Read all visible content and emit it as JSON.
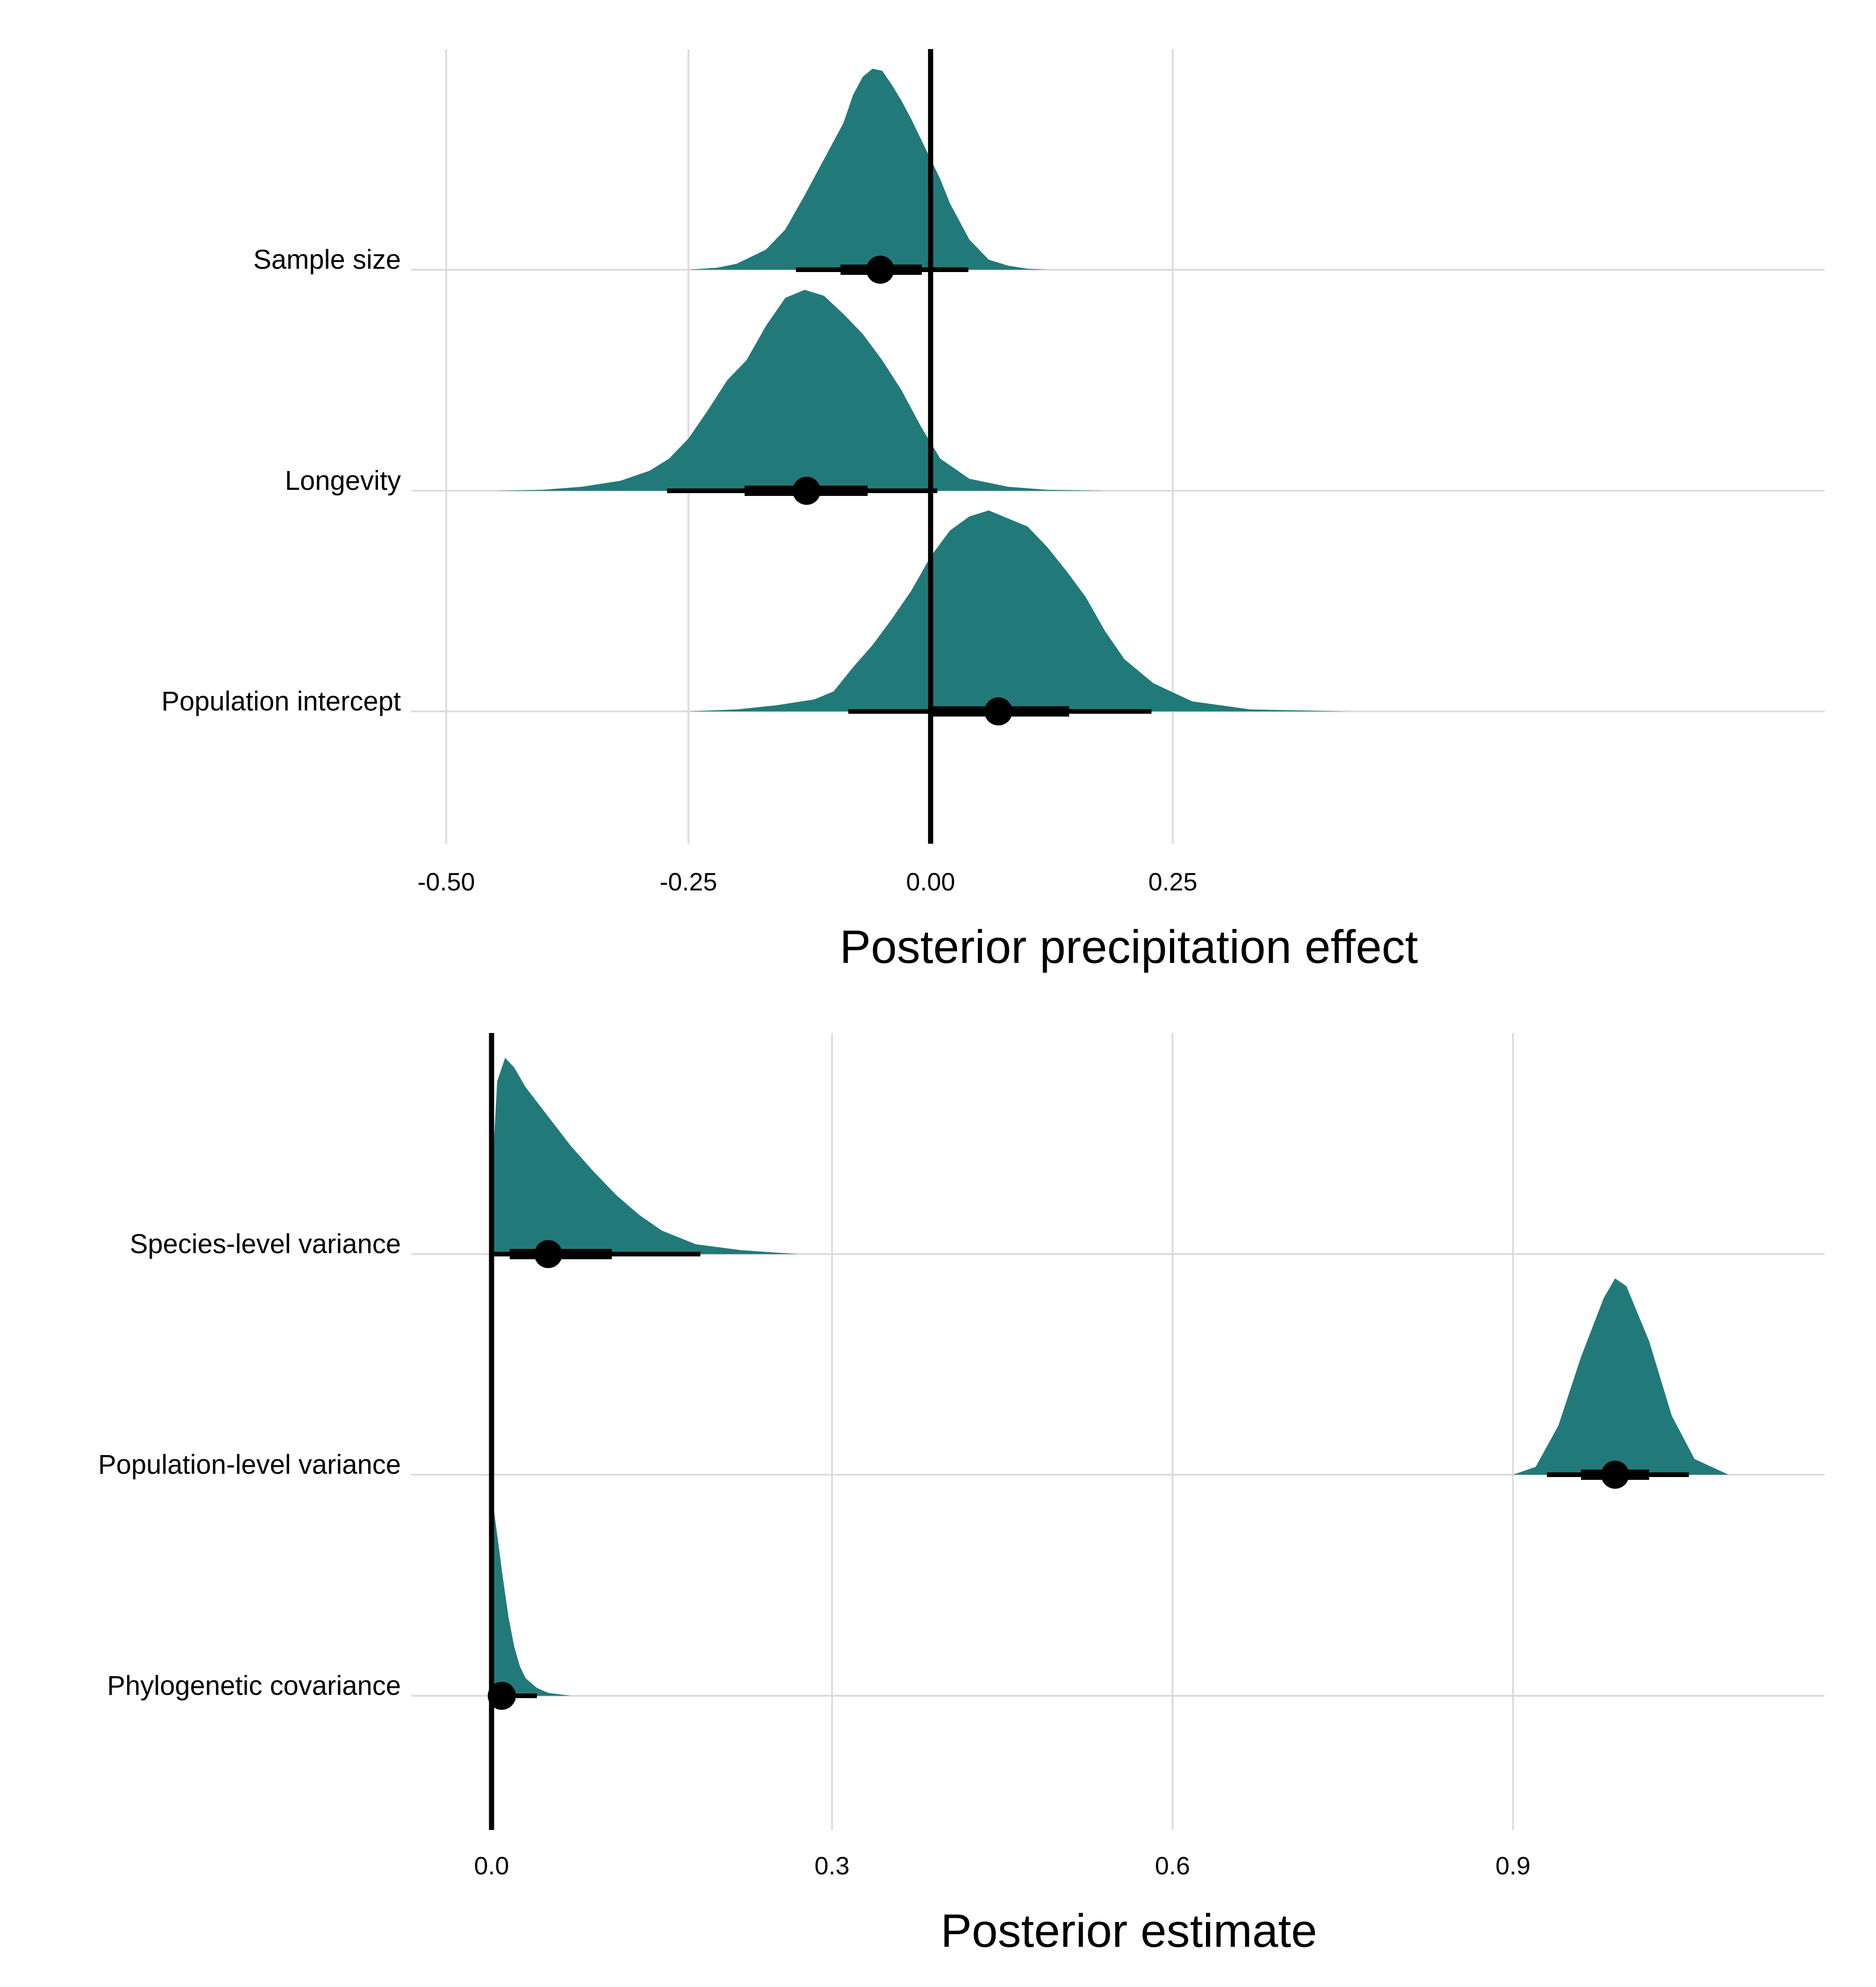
{
  "chart_data": [
    {
      "type": "halfeye",
      "xlabel": "Posterior precipitation effect",
      "ylabel": "",
      "xlim": [
        -0.5,
        0.475
      ],
      "xticks": [
        -0.5,
        -0.25,
        0.0,
        0.25
      ],
      "xtick_labels": [
        "-0.50",
        "-0.25",
        "0.00",
        "0.25"
      ],
      "reference_line": 0.0,
      "fill_color": "#217a79",
      "grid": true,
      "categories": [
        "Sample size",
        "Longevity",
        "Population intercept"
      ],
      "series": [
        {
          "name": "Sample size",
          "median": -0.052,
          "interval_66": [
            -0.093,
            -0.009
          ],
          "interval_95": [
            -0.139,
            0.039
          ],
          "density": {
            "x": [
              -0.25,
              -0.22,
              -0.2,
              -0.17,
              -0.15,
              -0.13,
              -0.11,
              -0.09,
              -0.08,
              -0.07,
              -0.06,
              -0.05,
              -0.04,
              -0.03,
              -0.02,
              -0.01,
              0.0,
              0.01,
              0.02,
              0.04,
              0.06,
              0.08,
              0.1,
              0.12
            ],
            "y": [
              0.0,
              0.01,
              0.03,
              0.1,
              0.2,
              0.37,
              0.55,
              0.73,
              0.87,
              0.96,
              1.0,
              0.99,
              0.92,
              0.84,
              0.75,
              0.65,
              0.55,
              0.45,
              0.33,
              0.15,
              0.05,
              0.02,
              0.005,
              0.0
            ]
          }
        },
        {
          "name": "Longevity",
          "median": -0.128,
          "interval_66": [
            -0.192,
            -0.065
          ],
          "interval_95": [
            -0.272,
            0.007
          ],
          "density": {
            "x": [
              -0.45,
              -0.4,
              -0.36,
              -0.32,
              -0.29,
              -0.27,
              -0.25,
              -0.23,
              -0.21,
              -0.19,
              -0.17,
              -0.15,
              -0.13,
              -0.11,
              -0.09,
              -0.07,
              -0.05,
              -0.03,
              -0.01,
              0.01,
              0.04,
              0.08,
              0.12,
              0.18
            ],
            "y": [
              0.0,
              0.005,
              0.02,
              0.05,
              0.1,
              0.16,
              0.26,
              0.4,
              0.55,
              0.65,
              0.82,
              0.96,
              1.0,
              0.97,
              0.88,
              0.78,
              0.65,
              0.5,
              0.32,
              0.16,
              0.06,
              0.02,
              0.005,
              0.0
            ]
          }
        },
        {
          "name": "Population intercept",
          "median": 0.07,
          "interval_66": [
            0.0,
            0.143
          ],
          "interval_95": [
            -0.085,
            0.228
          ],
          "density": {
            "x": [
              -0.25,
              -0.2,
              -0.16,
              -0.12,
              -0.1,
              -0.08,
              -0.06,
              -0.04,
              -0.02,
              0.0,
              0.02,
              0.04,
              0.06,
              0.08,
              0.1,
              0.12,
              0.14,
              0.16,
              0.18,
              0.2,
              0.23,
              0.27,
              0.33,
              0.43
            ],
            "y": [
              0.0,
              0.01,
              0.03,
              0.06,
              0.1,
              0.22,
              0.33,
              0.46,
              0.6,
              0.77,
              0.9,
              0.97,
              1.0,
              0.96,
              0.92,
              0.82,
              0.7,
              0.57,
              0.4,
              0.26,
              0.14,
              0.05,
              0.01,
              0.0
            ]
          }
        }
      ]
    },
    {
      "type": "halfeye",
      "xlabel": "Posterior estimate",
      "ylabel": "",
      "xlim": [
        -0.05,
        1.17
      ],
      "xticks": [
        0.0,
        0.3,
        0.6,
        0.9
      ],
      "xtick_labels": [
        "0.0",
        "0.3",
        "0.6",
        "0.9"
      ],
      "reference_line": 0.0,
      "fill_color": "#217a79",
      "grid": true,
      "categories": [
        "Species-level variance",
        "Population-level variance",
        "Phylogenetic covariance"
      ],
      "series": [
        {
          "name": "Species-level variance",
          "median": 0.05,
          "interval_66": [
            0.016,
            0.106
          ],
          "interval_95": [
            0.002,
            0.184
          ],
          "density": {
            "x": [
              0.0,
              0.005,
              0.012,
              0.02,
              0.03,
              0.05,
              0.07,
              0.09,
              0.11,
              0.13,
              0.15,
              0.18,
              0.22,
              0.27
            ],
            "y": [
              0.35,
              0.88,
              1.0,
              0.95,
              0.85,
              0.7,
              0.55,
              0.42,
              0.3,
              0.2,
              0.12,
              0.05,
              0.02,
              0.0
            ]
          }
        },
        {
          "name": "Population-level variance",
          "median": 0.99,
          "interval_66": [
            0.96,
            1.02
          ],
          "interval_95": [
            0.93,
            1.055
          ],
          "density": {
            "x": [
              0.9,
              0.92,
              0.94,
              0.96,
              0.98,
              0.99,
              1.0,
              1.02,
              1.04,
              1.06,
              1.09
            ],
            "y": [
              0.0,
              0.04,
              0.25,
              0.6,
              0.9,
              1.0,
              0.96,
              0.68,
              0.3,
              0.08,
              0.0
            ]
          }
        },
        {
          "name": "Phylogenetic covariance",
          "median": 0.009,
          "interval_66": [
            0.002,
            0.021
          ],
          "interval_95": [
            0.0,
            0.04
          ],
          "density": {
            "x": [
              0.0,
              0.002,
              0.005,
              0.01,
              0.015,
              0.02,
              0.025,
              0.03,
              0.04,
              0.05,
              0.07
            ],
            "y": [
              1.0,
              0.95,
              0.82,
              0.6,
              0.4,
              0.25,
              0.15,
              0.09,
              0.04,
              0.015,
              0.0
            ]
          }
        }
      ]
    }
  ]
}
